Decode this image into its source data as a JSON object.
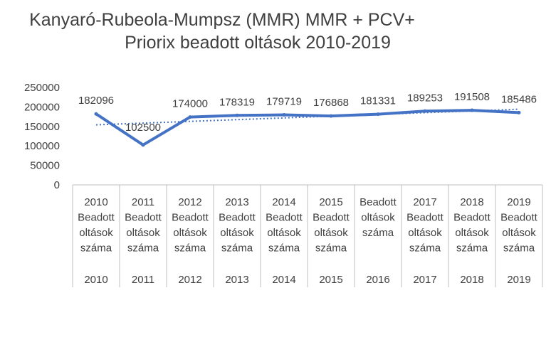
{
  "title_line1": "Kanyaró-Rubeola-Mumpsz (MMR) MMR + PCV+",
  "title_line2": "Priorix beadott oltások 2010-2019",
  "colors": {
    "series": "#4472c4",
    "axis": "#bfbfbf",
    "text": "#404040"
  },
  "chart_data": {
    "type": "line",
    "title": "Kanyaró-Rubeola-Mumpsz (MMR) MMR + PCV+ Priorix beadott oltások 2010-2019",
    "ylim": [
      0,
      250000
    ],
    "yticks": [
      "250000",
      "200000",
      "150000",
      "100000",
      "50000",
      "0"
    ],
    "ytick_values": [
      250000,
      200000,
      150000,
      100000,
      50000,
      0
    ],
    "categories": [
      {
        "label_lines": [
          "2010",
          "Beadott",
          "oltások",
          "száma"
        ],
        "group": "2010"
      },
      {
        "label_lines": [
          "2011",
          "Beadott",
          "oltások",
          "száma"
        ],
        "group": "2011"
      },
      {
        "label_lines": [
          "2012",
          "Beadott",
          "oltások",
          "száma"
        ],
        "group": "2012"
      },
      {
        "label_lines": [
          "2013",
          "Beadott",
          "oltások",
          "száma"
        ],
        "group": "2013"
      },
      {
        "label_lines": [
          "2014",
          "Beadott",
          "oltások",
          "száma"
        ],
        "group": "2014"
      },
      {
        "label_lines": [
          "2015",
          "Beadott",
          "oltások",
          "száma"
        ],
        "group": "2015"
      },
      {
        "label_lines": [
          "Beadott",
          "oltások",
          "száma"
        ],
        "group": "2016"
      },
      {
        "label_lines": [
          "2017",
          "Beadott",
          "oltások",
          "száma"
        ],
        "group": "2017"
      },
      {
        "label_lines": [
          "2018",
          "Beadott",
          "oltások",
          "száma"
        ],
        "group": "2018"
      },
      {
        "label_lines": [
          "2019",
          "Beadott",
          "oltások",
          "száma"
        ],
        "group": "2019"
      }
    ],
    "series": [
      {
        "values": [
          182096,
          102500,
          174000,
          178319,
          179719,
          176868,
          181331,
          189253,
          191508,
          185486
        ]
      }
    ],
    "trendline": {
      "type": "linear",
      "style": "dotted"
    },
    "legend": "none",
    "grid": false
  }
}
